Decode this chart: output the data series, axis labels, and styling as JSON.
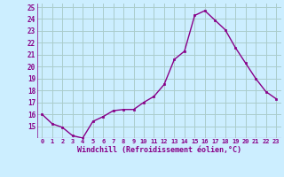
{
  "x": [
    0,
    1,
    2,
    3,
    4,
    5,
    6,
    7,
    8,
    9,
    10,
    11,
    12,
    13,
    14,
    15,
    16,
    17,
    18,
    19,
    20,
    21,
    22,
    23
  ],
  "y": [
    16.0,
    15.2,
    14.9,
    14.2,
    14.0,
    15.4,
    15.8,
    16.3,
    16.4,
    16.4,
    17.0,
    17.5,
    18.5,
    20.6,
    21.3,
    24.3,
    24.7,
    23.9,
    23.1,
    21.6,
    20.3,
    19.0,
    17.9,
    17.3
  ],
  "line_color": "#880088",
  "marker": "s",
  "marker_size": 2.0,
  "line_width": 1.0,
  "bg_color": "#cceeff",
  "grid_color": "#aacccc",
  "xlabel": "Windchill (Refroidissement éolien,°C)",
  "xlabel_color": "#880088",
  "tick_color": "#880088",
  "ylim_min": 14,
  "ylim_max": 25,
  "ytick_vals": [
    15,
    16,
    17,
    18,
    19,
    20,
    21,
    22,
    23,
    24,
    25
  ],
  "xtick_labels": [
    "0",
    "1",
    "2",
    "3",
    "4",
    "5",
    "6",
    "7",
    "8",
    "9",
    "10",
    "11",
    "12",
    "13",
    "14",
    "15",
    "16",
    "17",
    "18",
    "19",
    "20",
    "21",
    "22",
    "23"
  ]
}
